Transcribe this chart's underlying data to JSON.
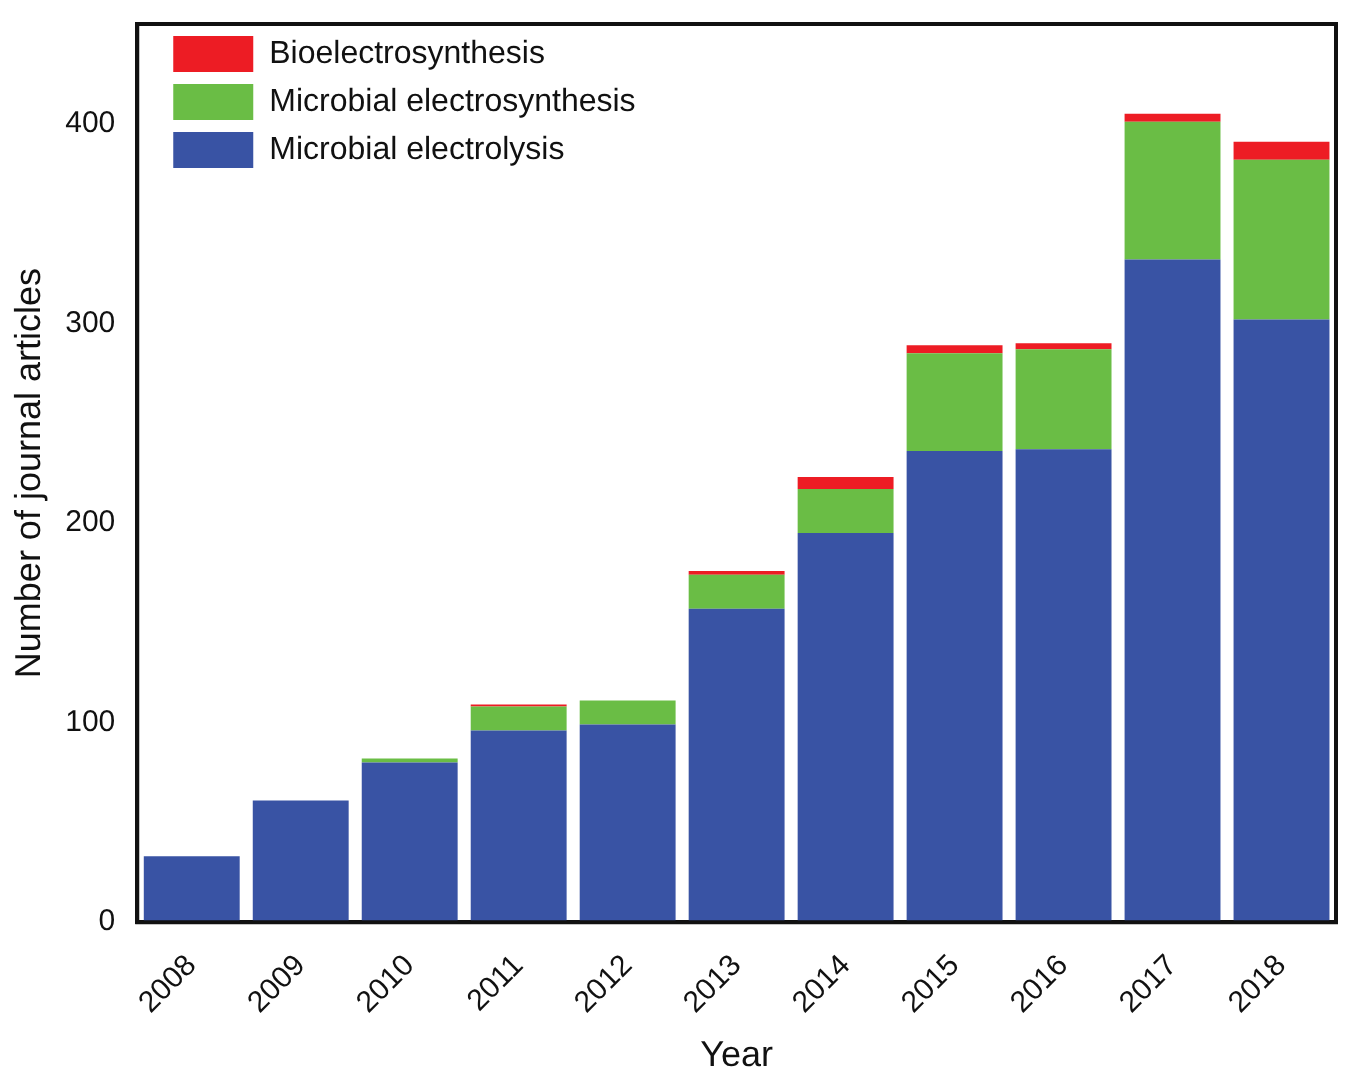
{
  "chart_data": {
    "type": "bar",
    "stacked": true,
    "xlabel": "Year",
    "ylabel": "Number of journal articles",
    "categories": [
      "2008",
      "2009",
      "2010",
      "2011",
      "2012",
      "2013",
      "2014",
      "2015",
      "2016",
      "2017",
      "2018"
    ],
    "series": [
      {
        "name": "Microbial electrolysis",
        "color": "#3953a4",
        "values": [
          33,
          61,
          80,
          96,
          99,
          157,
          195,
          236,
          237,
          332,
          302
        ]
      },
      {
        "name": "Microbial electrosynthesis",
        "color": "#6abd45",
        "values": [
          0,
          0,
          2,
          12,
          12,
          17,
          22,
          49,
          50,
          69,
          80
        ]
      },
      {
        "name": "Bioelectrosynthesis",
        "color": "#ed1c24",
        "values": [
          0,
          0,
          0,
          1,
          0,
          2,
          6,
          4,
          3,
          4,
          9
        ]
      }
    ],
    "ylim": [
      0,
      450
    ],
    "yticks": [
      0,
      100,
      200,
      300,
      400
    ],
    "grid": false,
    "legend": "top left"
  }
}
